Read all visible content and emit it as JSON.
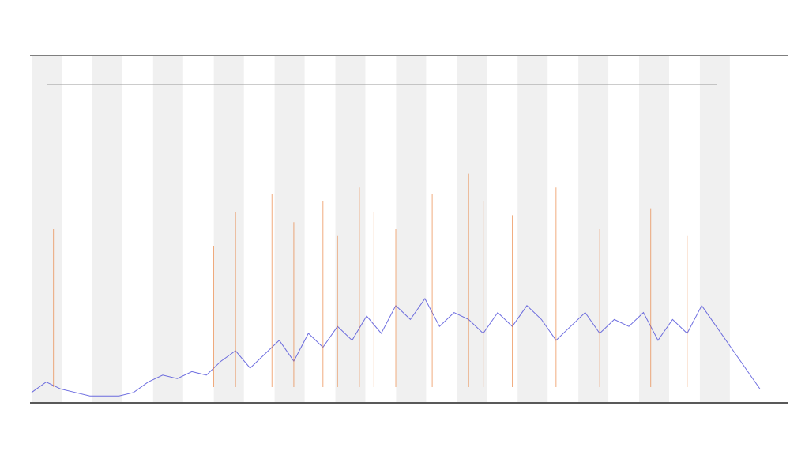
{
  "chart_data": {
    "type": "line",
    "xlim": [
      0,
      100
    ],
    "ylim": [
      0,
      100
    ],
    "series": [
      {
        "type": "line",
        "color": "#4a4ad8",
        "x": [
          0,
          2,
          4,
          6,
          8,
          10,
          12,
          14,
          16,
          18,
          20,
          22,
          24,
          26,
          28,
          30,
          32,
          34,
          36,
          38,
          40,
          42,
          44,
          46,
          48,
          50,
          52,
          54,
          56,
          58,
          60,
          62,
          64,
          66,
          68,
          70,
          72,
          74,
          76,
          78,
          80,
          82,
          84,
          86,
          88,
          90,
          92,
          94,
          96,
          98,
          100
        ],
        "values": [
          3,
          6,
          4,
          3,
          2,
          2,
          2,
          3,
          6,
          8,
          7,
          9,
          8,
          12,
          15,
          10,
          14,
          18,
          12,
          20,
          16,
          22,
          18,
          25,
          20,
          28,
          24,
          30,
          22,
          26,
          24,
          20,
          26,
          22,
          28,
          24,
          18,
          22,
          26,
          20,
          24,
          22,
          26,
          18,
          24,
          20,
          28,
          22,
          16,
          10,
          4
        ]
      },
      {
        "type": "bar",
        "color": "#e8742a",
        "x": [
          3,
          25,
          28,
          33,
          36,
          40,
          42,
          45,
          47,
          50,
          55,
          60,
          62,
          66,
          72,
          78,
          85,
          90
        ],
        "values": [
          50,
          45,
          55,
          60,
          52,
          58,
          48,
          62,
          55,
          50,
          60,
          66,
          58,
          54,
          62,
          50,
          56,
          48
        ]
      }
    ]
  }
}
